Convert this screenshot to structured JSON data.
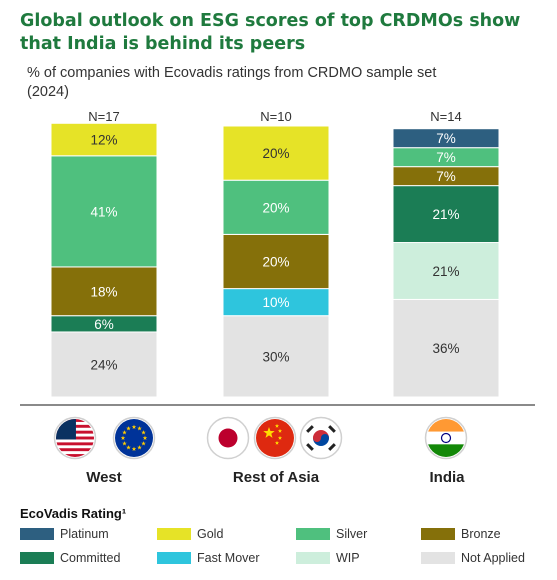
{
  "title": "Global outlook on ESG scores of top CRDMOs show that India is behind its peers",
  "subtitle": "% of companies with Ecovadis ratings  from CRDMO sample set (2024)",
  "colors": {
    "Platinum": "#2d5f80",
    "Gold": "#e6e327",
    "Silver": "#4fc07e",
    "Bronze": "#85700a",
    "Committed": "#1b7d55",
    "Fast Mover": "#2ec5dd",
    "WIP": "#cdeedc",
    "Not Applied": "#e3e3e3"
  },
  "chart_data": {
    "type": "bar",
    "stacked": true,
    "ylim": [
      0,
      100
    ],
    "categories": [
      "West",
      "Rest of Asia",
      "India"
    ],
    "n_labels": [
      "N=17",
      "N=10",
      "N=14"
    ],
    "series": [
      {
        "name": "Not Applied",
        "values": [
          24,
          30,
          36
        ],
        "labels": [
          "24%",
          "30%",
          "36%"
        ]
      },
      {
        "name": "WIP",
        "values": [
          0,
          0,
          21
        ],
        "labels": [
          "",
          "",
          "21%"
        ]
      },
      {
        "name": "Fast Mover",
        "values": [
          0,
          10,
          0
        ],
        "labels": [
          "",
          "10%",
          ""
        ]
      },
      {
        "name": "Committed",
        "values": [
          6,
          0,
          21
        ],
        "labels": [
          "6%",
          "",
          "21%"
        ]
      },
      {
        "name": "Bronze",
        "values": [
          18,
          20,
          7
        ],
        "labels": [
          "18%",
          "20%",
          "7%"
        ]
      },
      {
        "name": "Silver",
        "values": [
          41,
          20,
          7
        ],
        "labels": [
          "41%",
          "20%",
          "7%"
        ]
      },
      {
        "name": "Gold",
        "values": [
          12,
          20,
          0
        ],
        "labels": [
          "12%",
          "20%",
          ""
        ]
      },
      {
        "name": "Platinum",
        "values": [
          0,
          0,
          7
        ],
        "labels": [
          "",
          "",
          "7%"
        ]
      }
    ]
  },
  "flags": [
    {
      "group": "West",
      "items": [
        "united-states-flag-icon",
        "european-union-flag-icon"
      ]
    },
    {
      "group": "Rest of Asia",
      "items": [
        "japan-flag-icon",
        "china-flag-icon",
        "south-korea-flag-icon"
      ]
    },
    {
      "group": "India",
      "items": [
        "india-flag-icon"
      ]
    }
  ],
  "legend": {
    "title": "EcoVadis Rating¹",
    "items": [
      "Platinum",
      "Gold",
      "Silver",
      "Bronze",
      "Committed",
      "Fast Mover",
      "WIP",
      "Not Applied"
    ]
  }
}
